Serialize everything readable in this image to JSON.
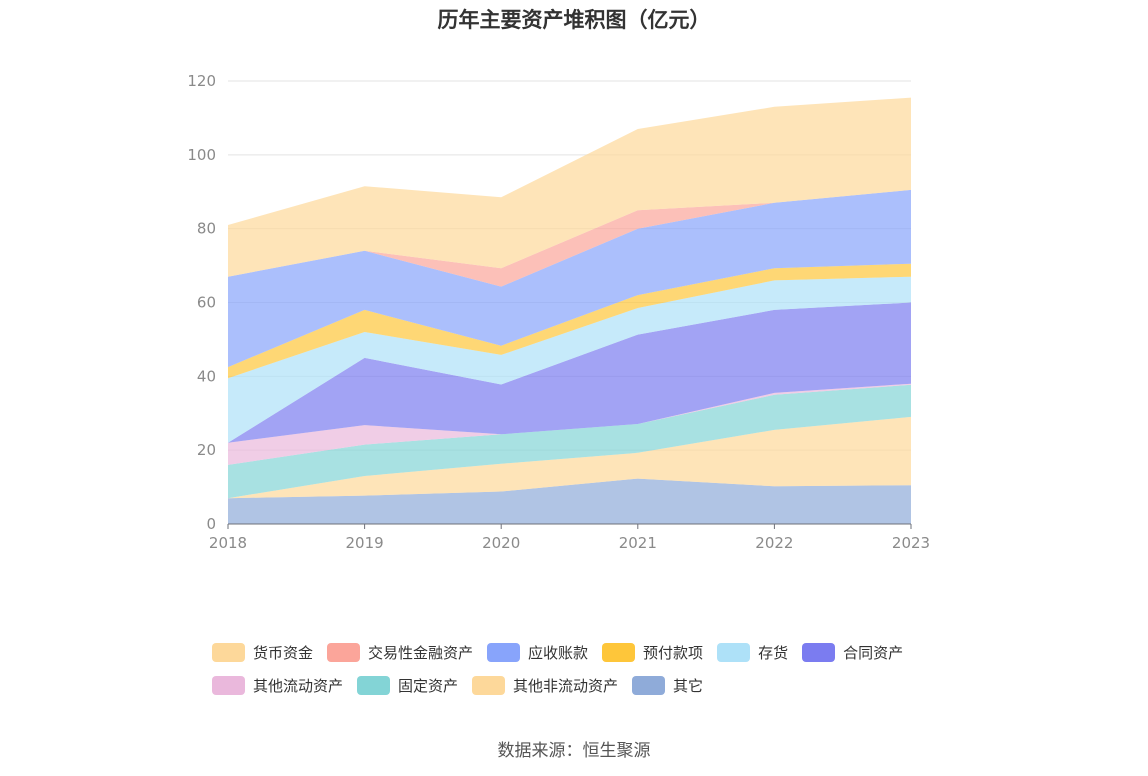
{
  "chart_data": {
    "type": "area",
    "stacked": true,
    "title": "历年主要资产堆积图（亿元）",
    "x": [
      "2018",
      "2019",
      "2020",
      "2021",
      "2022",
      "2023"
    ],
    "ylim": [
      0,
      120
    ],
    "yticks": [
      0,
      20,
      40,
      60,
      80,
      100,
      120
    ],
    "grid": true,
    "legend_position": "bottom",
    "series": [
      {
        "name": "其它",
        "color": "#8fabd9",
        "values": [
          7.0,
          7.7,
          8.8,
          12.3,
          10.2,
          10.5
        ]
      },
      {
        "name": "其他非流动资产",
        "color": "#fdd89a",
        "values": [
          0.0,
          5.3,
          7.5,
          7.0,
          15.3,
          18.5
        ]
      },
      {
        "name": "固定资产",
        "color": "#83d4d6",
        "values": [
          9.0,
          8.5,
          8.0,
          7.8,
          9.5,
          8.7
        ]
      },
      {
        "name": "其他流动资产",
        "color": "#eab8dc",
        "values": [
          6.0,
          5.3,
          0.0,
          0.0,
          0.5,
          0.3
        ]
      },
      {
        "name": "合同资产",
        "color": "#7b7cf0",
        "values": [
          0.0,
          18.2,
          13.5,
          24.2,
          22.5,
          22.0
        ]
      },
      {
        "name": "存货",
        "color": "#aee1f8",
        "values": [
          17.5,
          7.0,
          8.0,
          7.2,
          8.0,
          7.0
        ]
      },
      {
        "name": "预付款项",
        "color": "#fec63a",
        "values": [
          3.0,
          6.0,
          2.5,
          3.5,
          3.3,
          3.5
        ]
      },
      {
        "name": "应收账款",
        "color": "#88a4fb",
        "values": [
          24.5,
          16.0,
          16.0,
          18.0,
          17.7,
          20.0
        ]
      },
      {
        "name": "交易性金融资产",
        "color": "#fba59a",
        "values": [
          0.0,
          0.0,
          5.0,
          5.0,
          0.0,
          0.0
        ]
      },
      {
        "name": "货币资金",
        "color": "#fdd89a",
        "values": [
          14.0,
          17.5,
          19.2,
          22.0,
          26.0,
          25.0
        ]
      }
    ]
  },
  "legend": [
    [
      {
        "name": "货币资金",
        "color": "#fdd89a"
      },
      {
        "name": "交易性金融资产",
        "color": "#fba59a"
      },
      {
        "name": "应收账款",
        "color": "#88a4fb"
      },
      {
        "name": "预付款项",
        "color": "#fec63a"
      },
      {
        "name": "存货",
        "color": "#aee1f8"
      },
      {
        "name": "合同资产",
        "color": "#7b7cf0"
      }
    ],
    [
      {
        "name": "其他流动资产",
        "color": "#eab8dc"
      },
      {
        "name": "固定资产",
        "color": "#83d4d6"
      },
      {
        "name": "其他非流动资产",
        "color": "#fdd89a"
      },
      {
        "name": "其它",
        "color": "#8fabd9"
      }
    ]
  ],
  "source": "数据来源：恒生聚源"
}
